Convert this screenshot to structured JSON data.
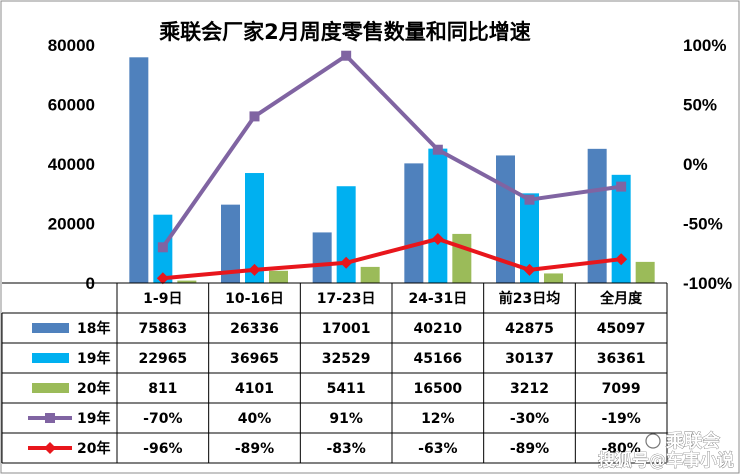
{
  "chart_data": {
    "type": "bar",
    "title": "乘联会厂家2月周度零售数量和同比增速",
    "categories": [
      "1-9日",
      "10-16日",
      "17-23日",
      "24-31日",
      "前23日均",
      "全月度"
    ],
    "y_left": {
      "ylim": [
        0,
        80000
      ],
      "ticks": [
        "0",
        "20000",
        "40000",
        "60000",
        "80000"
      ]
    },
    "y_right": {
      "ylim": [
        -100,
        100
      ],
      "ticks": [
        "100%",
        "50%",
        "0%",
        "-50%",
        "-100%"
      ]
    },
    "series": [
      {
        "name": "18年",
        "kind": "bar",
        "color": "#4F81BD",
        "values": [
          75863,
          26336,
          17001,
          40210,
          42875,
          45097
        ],
        "labels": [
          "75863",
          "26336",
          "17001",
          "40210",
          "42875",
          "45097"
        ]
      },
      {
        "name": "19年",
        "kind": "bar",
        "color": "#00B0F0",
        "values": [
          22965,
          36965,
          32529,
          45166,
          30137,
          36361
        ],
        "labels": [
          "22965",
          "36965",
          "32529",
          "45166",
          "30137",
          "36361"
        ]
      },
      {
        "name": "20年",
        "kind": "bar",
        "color": "#9BBB59",
        "values": [
          811,
          4101,
          5411,
          16500,
          3212,
          7099
        ],
        "labels": [
          "811",
          "4101",
          "5411",
          "16500",
          "3212",
          "7099"
        ]
      },
      {
        "name": "19年",
        "kind": "line",
        "marker": "square",
        "color": "#8064A2",
        "values": [
          -70,
          40,
          91,
          12,
          -30,
          -19
        ],
        "labels": [
          "-70%",
          "40%",
          "91%",
          "12%",
          "-30%",
          "-19%"
        ]
      },
      {
        "name": "20年",
        "kind": "line",
        "marker": "diamond",
        "color": "#E8161C",
        "values": [
          -96,
          -89,
          -83,
          -63,
          -89,
          -80
        ],
        "labels": [
          "-96%",
          "-89%",
          "-83%",
          "-63%",
          "-89%",
          "-80%"
        ]
      }
    ],
    "legend": "table-left",
    "grid": false
  },
  "watermark": {
    "line1": "乘联会",
    "line2": "搜狐号@车事小说"
  }
}
